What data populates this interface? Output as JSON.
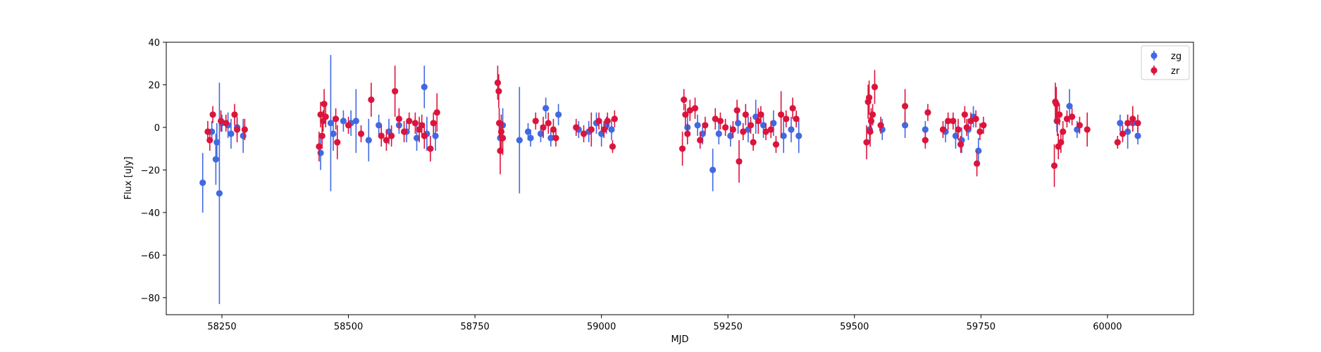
{
  "chart_data": {
    "type": "scatter",
    "title": "",
    "xlabel": "MJD",
    "ylabel": "Flux [uJy]",
    "xlim": [
      58140,
      60170
    ],
    "ylim": [
      -88,
      40
    ],
    "xticks": [
      58250,
      58500,
      58750,
      59000,
      59250,
      59500,
      59750,
      60000
    ],
    "yticks": [
      -80,
      -60,
      -40,
      -20,
      0,
      20,
      40
    ],
    "grid": false,
    "legend_placement": "top-right",
    "series": [
      {
        "name": "zg",
        "color": "#4169e1",
        "points": [
          {
            "x": 58212,
            "y": -26,
            "err": 14
          },
          {
            "x": 58230,
            "y": -2,
            "err": 5
          },
          {
            "x": 58238,
            "y": -15,
            "err": 12
          },
          {
            "x": 58240,
            "y": -7,
            "err": 9
          },
          {
            "x": 58245,
            "y": -31,
            "err": 52
          },
          {
            "x": 58250,
            "y": 2,
            "err": 4
          },
          {
            "x": 58262,
            "y": 1,
            "err": 6
          },
          {
            "x": 58268,
            "y": -3,
            "err": 7
          },
          {
            "x": 58280,
            "y": 0,
            "err": 4
          },
          {
            "x": 58292,
            "y": -4,
            "err": 8
          },
          {
            "x": 58445,
            "y": -12,
            "err": 8
          },
          {
            "x": 58465,
            "y": 2,
            "err": 32
          },
          {
            "x": 58470,
            "y": -3,
            "err": 8
          },
          {
            "x": 58490,
            "y": 3,
            "err": 5
          },
          {
            "x": 58505,
            "y": 2,
            "err": 6
          },
          {
            "x": 58515,
            "y": 3,
            "err": 15
          },
          {
            "x": 58540,
            "y": -6,
            "err": 10
          },
          {
            "x": 58560,
            "y": 1,
            "err": 5
          },
          {
            "x": 58580,
            "y": -2,
            "err": 6
          },
          {
            "x": 58600,
            "y": 1,
            "err": 4
          },
          {
            "x": 58615,
            "y": -2,
            "err": 5
          },
          {
            "x": 58635,
            "y": -5,
            "err": 6
          },
          {
            "x": 58650,
            "y": 19,
            "err": 10
          },
          {
            "x": 58655,
            "y": -3,
            "err": 8
          },
          {
            "x": 58672,
            "y": -4,
            "err": 7
          },
          {
            "x": 58800,
            "y": -5,
            "err": 6
          },
          {
            "x": 58805,
            "y": 1,
            "err": 8
          },
          {
            "x": 58838,
            "y": -6,
            "err": 25
          },
          {
            "x": 58855,
            "y": -2,
            "err": 4
          },
          {
            "x": 58860,
            "y": -5,
            "err": 4
          },
          {
            "x": 58880,
            "y": -3,
            "err": 4
          },
          {
            "x": 58890,
            "y": 9,
            "err": 5
          },
          {
            "x": 58900,
            "y": -5,
            "err": 4
          },
          {
            "x": 58915,
            "y": 6,
            "err": 5
          },
          {
            "x": 58955,
            "y": -1,
            "err": 4
          },
          {
            "x": 58975,
            "y": -2,
            "err": 5
          },
          {
            "x": 58990,
            "y": 2,
            "err": 5
          },
          {
            "x": 59000,
            "y": -3,
            "err": 6
          },
          {
            "x": 59010,
            "y": 1,
            "err": 4
          },
          {
            "x": 59020,
            "y": -1,
            "err": 5
          },
          {
            "x": 59170,
            "y": 0,
            "err": 6
          },
          {
            "x": 59190,
            "y": 1,
            "err": 5
          },
          {
            "x": 59200,
            "y": -3,
            "err": 5
          },
          {
            "x": 59220,
            "y": -20,
            "err": 10
          },
          {
            "x": 59232,
            "y": -3,
            "err": 5
          },
          {
            "x": 59255,
            "y": -4,
            "err": 5
          },
          {
            "x": 59270,
            "y": 2,
            "err": 5
          },
          {
            "x": 59290,
            "y": -1,
            "err": 6
          },
          {
            "x": 59305,
            "y": 5,
            "err": 8
          },
          {
            "x": 59320,
            "y": 1,
            "err": 6
          },
          {
            "x": 59340,
            "y": 2,
            "err": 6
          },
          {
            "x": 59360,
            "y": -4,
            "err": 8
          },
          {
            "x": 59375,
            "y": -1,
            "err": 6
          },
          {
            "x": 59390,
            "y": -4,
            "err": 8
          },
          {
            "x": 59530,
            "y": -1,
            "err": 6
          },
          {
            "x": 59555,
            "y": -1,
            "err": 5
          },
          {
            "x": 59600,
            "y": 1,
            "err": 6
          },
          {
            "x": 59640,
            "y": -1,
            "err": 4
          },
          {
            "x": 59680,
            "y": -2,
            "err": 5
          },
          {
            "x": 59700,
            "y": -4,
            "err": 6
          },
          {
            "x": 59712,
            "y": -6,
            "err": 6
          },
          {
            "x": 59725,
            "y": -1,
            "err": 5
          },
          {
            "x": 59735,
            "y": 5,
            "err": 5
          },
          {
            "x": 59745,
            "y": -11,
            "err": 6
          },
          {
            "x": 59900,
            "y": 3,
            "err": 5
          },
          {
            "x": 59925,
            "y": 10,
            "err": 8
          },
          {
            "x": 59940,
            "y": -1,
            "err": 4
          },
          {
            "x": 60025,
            "y": 2,
            "err": 4
          },
          {
            "x": 60040,
            "y": -2,
            "err": 8
          },
          {
            "x": 60050,
            "y": 2,
            "err": 4
          },
          {
            "x": 60060,
            "y": -4,
            "err": 4
          }
        ]
      },
      {
        "name": "zr",
        "color": "#dc143c",
        "points": [
          {
            "x": 58222,
            "y": -2,
            "err": 5
          },
          {
            "x": 58226,
            "y": -6,
            "err": 5
          },
          {
            "x": 58232,
            "y": 6,
            "err": 4
          },
          {
            "x": 58248,
            "y": 3,
            "err": 5
          },
          {
            "x": 58258,
            "y": 2,
            "err": 4
          },
          {
            "x": 58275,
            "y": 6,
            "err": 5
          },
          {
            "x": 58280,
            "y": -1,
            "err": 6
          },
          {
            "x": 58295,
            "y": -1,
            "err": 5
          },
          {
            "x": 58442,
            "y": -9,
            "err": 7
          },
          {
            "x": 58445,
            "y": 6,
            "err": 6
          },
          {
            "x": 58448,
            "y": -4,
            "err": 6
          },
          {
            "x": 58450,
            "y": 3,
            "err": 5
          },
          {
            "x": 58452,
            "y": 11,
            "err": 7
          },
          {
            "x": 58455,
            "y": 5,
            "err": 5
          },
          {
            "x": 58475,
            "y": 4,
            "err": 5
          },
          {
            "x": 58478,
            "y": -7,
            "err": 8
          },
          {
            "x": 58500,
            "y": 1,
            "err": 4
          },
          {
            "x": 58525,
            "y": -3,
            "err": 4
          },
          {
            "x": 58545,
            "y": 13,
            "err": 8
          },
          {
            "x": 58565,
            "y": -4,
            "err": 5
          },
          {
            "x": 58575,
            "y": -6,
            "err": 5
          },
          {
            "x": 58585,
            "y": -4,
            "err": 5
          },
          {
            "x": 58592,
            "y": 17,
            "err": 12
          },
          {
            "x": 58600,
            "y": 4,
            "err": 5
          },
          {
            "x": 58610,
            "y": -2,
            "err": 5
          },
          {
            "x": 58620,
            "y": 3,
            "err": 4
          },
          {
            "x": 58632,
            "y": 2,
            "err": 5
          },
          {
            "x": 58640,
            "y": -1,
            "err": 6
          },
          {
            "x": 58645,
            "y": 1,
            "err": 5
          },
          {
            "x": 58650,
            "y": -4,
            "err": 6
          },
          {
            "x": 58662,
            "y": -10,
            "err": 6
          },
          {
            "x": 58668,
            "y": 2,
            "err": 5
          },
          {
            "x": 58675,
            "y": 7,
            "err": 9
          },
          {
            "x": 58795,
            "y": 21,
            "err": 8
          },
          {
            "x": 58797,
            "y": 17,
            "err": 8
          },
          {
            "x": 58798,
            "y": 2,
            "err": 7
          },
          {
            "x": 58800,
            "y": -11,
            "err": 11
          },
          {
            "x": 58802,
            "y": -2,
            "err": 8
          },
          {
            "x": 58805,
            "y": -5,
            "err": 8
          },
          {
            "x": 58870,
            "y": 3,
            "err": 4
          },
          {
            "x": 58885,
            "y": 0,
            "err": 5
          },
          {
            "x": 58895,
            "y": 2,
            "err": 5
          },
          {
            "x": 58905,
            "y": -1,
            "err": 5
          },
          {
            "x": 58910,
            "y": -5,
            "err": 4
          },
          {
            "x": 58950,
            "y": 0,
            "err": 4
          },
          {
            "x": 58965,
            "y": -3,
            "err": 4
          },
          {
            "x": 58980,
            "y": -1,
            "err": 8
          },
          {
            "x": 58995,
            "y": 3,
            "err": 4
          },
          {
            "x": 59005,
            "y": -1,
            "err": 4
          },
          {
            "x": 59012,
            "y": 3,
            "err": 4
          },
          {
            "x": 59022,
            "y": -9,
            "err": 3
          },
          {
            "x": 59026,
            "y": 4,
            "err": 4
          },
          {
            "x": 59160,
            "y": -10,
            "err": 8
          },
          {
            "x": 59163,
            "y": 13,
            "err": 5
          },
          {
            "x": 59166,
            "y": 6,
            "err": 5
          },
          {
            "x": 59170,
            "y": -3,
            "err": 5
          },
          {
            "x": 59175,
            "y": 8,
            "err": 5
          },
          {
            "x": 59185,
            "y": 9,
            "err": 5
          },
          {
            "x": 59195,
            "y": -6,
            "err": 4
          },
          {
            "x": 59205,
            "y": 1,
            "err": 4
          },
          {
            "x": 59225,
            "y": 4,
            "err": 5
          },
          {
            "x": 59235,
            "y": 3,
            "err": 4
          },
          {
            "x": 59245,
            "y": 0,
            "err": 4
          },
          {
            "x": 59260,
            "y": -1,
            "err": 4
          },
          {
            "x": 59268,
            "y": 8,
            "err": 5
          },
          {
            "x": 59272,
            "y": -16,
            "err": 10
          },
          {
            "x": 59280,
            "y": -2,
            "err": 4
          },
          {
            "x": 59285,
            "y": 6,
            "err": 5
          },
          {
            "x": 59295,
            "y": 1,
            "err": 4
          },
          {
            "x": 59300,
            "y": -7,
            "err": 4
          },
          {
            "x": 59310,
            "y": 3,
            "err": 6
          },
          {
            "x": 59315,
            "y": 6,
            "err": 4
          },
          {
            "x": 59325,
            "y": -2,
            "err": 4
          },
          {
            "x": 59335,
            "y": -1,
            "err": 4
          },
          {
            "x": 59345,
            "y": -8,
            "err": 4
          },
          {
            "x": 59355,
            "y": 6,
            "err": 11
          },
          {
            "x": 59365,
            "y": 4,
            "err": 4
          },
          {
            "x": 59378,
            "y": 9,
            "err": 5
          },
          {
            "x": 59385,
            "y": 4,
            "err": 4
          },
          {
            "x": 59524,
            "y": -7,
            "err": 8
          },
          {
            "x": 59527,
            "y": 12,
            "err": 8
          },
          {
            "x": 59529,
            "y": 14,
            "err": 8
          },
          {
            "x": 59531,
            "y": -2,
            "err": 7
          },
          {
            "x": 59533,
            "y": 3,
            "err": 6
          },
          {
            "x": 59536,
            "y": 6,
            "err": 5
          },
          {
            "x": 59540,
            "y": 19,
            "err": 8
          },
          {
            "x": 59552,
            "y": 1,
            "err": 4
          },
          {
            "x": 59600,
            "y": 10,
            "err": 8
          },
          {
            "x": 59640,
            "y": -6,
            "err": 4
          },
          {
            "x": 59645,
            "y": 7,
            "err": 4
          },
          {
            "x": 59675,
            "y": -1,
            "err": 4
          },
          {
            "x": 59685,
            "y": 3,
            "err": 4
          },
          {
            "x": 59695,
            "y": 3,
            "err": 4
          },
          {
            "x": 59705,
            "y": -1,
            "err": 5
          },
          {
            "x": 59710,
            "y": -8,
            "err": 4
          },
          {
            "x": 59718,
            "y": 6,
            "err": 4
          },
          {
            "x": 59722,
            "y": 0,
            "err": 4
          },
          {
            "x": 59730,
            "y": 3,
            "err": 4
          },
          {
            "x": 59740,
            "y": 4,
            "err": 4
          },
          {
            "x": 59742,
            "y": -17,
            "err": 6
          },
          {
            "x": 59748,
            "y": -2,
            "err": 4
          },
          {
            "x": 59755,
            "y": 1,
            "err": 4
          },
          {
            "x": 59895,
            "y": -18,
            "err": 10
          },
          {
            "x": 59897,
            "y": 12,
            "err": 9
          },
          {
            "x": 59899,
            "y": 11,
            "err": 8
          },
          {
            "x": 59901,
            "y": 3,
            "err": 7
          },
          {
            "x": 59903,
            "y": -9,
            "err": 6
          },
          {
            "x": 59905,
            "y": 6,
            "err": 5
          },
          {
            "x": 59908,
            "y": -7,
            "err": 5
          },
          {
            "x": 59912,
            "y": -2,
            "err": 5
          },
          {
            "x": 59920,
            "y": 4,
            "err": 4
          },
          {
            "x": 59930,
            "y": 5,
            "err": 4
          },
          {
            "x": 59945,
            "y": 1,
            "err": 4
          },
          {
            "x": 59960,
            "y": -1,
            "err": 8
          },
          {
            "x": 60020,
            "y": -7,
            "err": 3
          },
          {
            "x": 60030,
            "y": -3,
            "err": 4
          },
          {
            "x": 60040,
            "y": 2,
            "err": 4
          },
          {
            "x": 60050,
            "y": 4,
            "err": 6
          },
          {
            "x": 60060,
            "y": 2,
            "err": 4
          }
        ]
      }
    ]
  }
}
